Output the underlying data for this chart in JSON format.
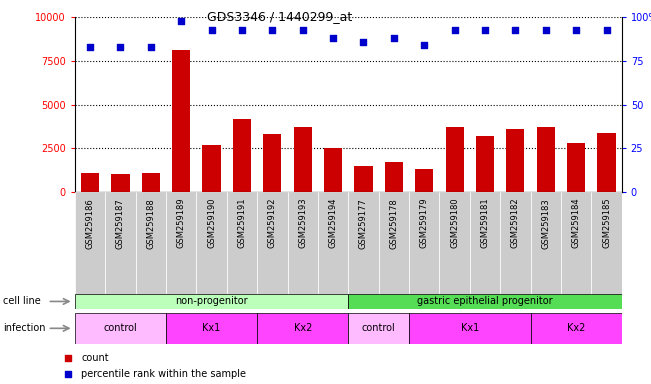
{
  "title": "GDS3346 / 1440299_at",
  "samples": [
    "GSM259186",
    "GSM259187",
    "GSM259188",
    "GSM259189",
    "GSM259190",
    "GSM259191",
    "GSM259192",
    "GSM259193",
    "GSM259194",
    "GSM259177",
    "GSM259178",
    "GSM259179",
    "GSM259180",
    "GSM259181",
    "GSM259182",
    "GSM259183",
    "GSM259184",
    "GSM259185"
  ],
  "counts": [
    1100,
    1050,
    1100,
    8100,
    2700,
    4200,
    3300,
    3700,
    2500,
    1500,
    1700,
    1300,
    3700,
    3200,
    3600,
    3700,
    2800,
    3400
  ],
  "percentile_ranks": [
    83,
    83,
    83,
    98,
    93,
    93,
    93,
    93,
    88,
    86,
    88,
    84,
    93,
    93,
    93,
    93,
    93,
    93
  ],
  "bar_color": "#cc0000",
  "dot_color": "#0000cc",
  "ylim_left": [
    0,
    10000
  ],
  "ylim_right": [
    0,
    100
  ],
  "yticks_left": [
    0,
    2500,
    5000,
    7500,
    10000
  ],
  "yticks_right": [
    0,
    25,
    50,
    75,
    100
  ],
  "background_color": "#ffffff",
  "tick_bg_color": "#cccccc",
  "cell_line_groups": [
    {
      "text": "non-progenitor",
      "start": 0,
      "end": 9,
      "color": "#bbffbb"
    },
    {
      "text": "gastric epithelial progenitor",
      "start": 9,
      "end": 18,
      "color": "#55dd55"
    }
  ],
  "infection_groups": [
    {
      "text": "control",
      "start": 0,
      "end": 3,
      "color": "#ffbbff"
    },
    {
      "text": "Kx1",
      "start": 3,
      "end": 6,
      "color": "#ff44ff"
    },
    {
      "text": "Kx2",
      "start": 6,
      "end": 9,
      "color": "#ff44ff"
    },
    {
      "text": "control",
      "start": 9,
      "end": 11,
      "color": "#ffbbff"
    },
    {
      "text": "Kx1",
      "start": 11,
      "end": 15,
      "color": "#ff44ff"
    },
    {
      "text": "Kx2",
      "start": 15,
      "end": 18,
      "color": "#ff44ff"
    }
  ],
  "legend_count_color": "#cc0000",
  "legend_dot_color": "#0000cc"
}
